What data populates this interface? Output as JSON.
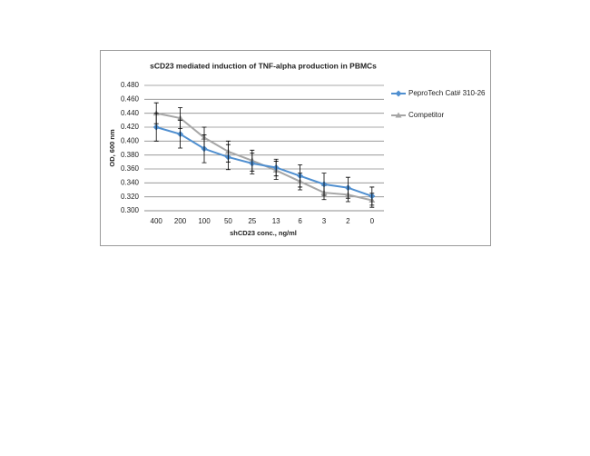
{
  "chart_data": {
    "type": "line",
    "title": "sCD23 mediated induction of TNF-alpha production in PBMCs",
    "x_label": "shCD23 conc., ng/ml",
    "y_label": "OD, 600 nm",
    "categories": [
      "400",
      "200",
      "100",
      "50",
      "25",
      "13",
      "6",
      "3",
      "2",
      "0"
    ],
    "series": [
      {
        "name": "PeproTech Cat# 310-26",
        "color": "#4f8fd0",
        "marker": "diamond",
        "values": [
          0.42,
          0.41,
          0.389,
          0.377,
          0.368,
          0.362,
          0.35,
          0.338,
          0.333,
          0.321
        ],
        "errors": [
          0.02,
          0.02,
          0.02,
          0.018,
          0.015,
          0.012,
          0.016,
          0.016,
          0.015,
          0.013
        ]
      },
      {
        "name": "Competitor",
        "color": "#a6a6a6",
        "marker": "triangle",
        "values": [
          0.44,
          0.433,
          0.405,
          0.385,
          0.372,
          0.358,
          0.342,
          0.326,
          0.323,
          0.315
        ],
        "errors": [
          0.015,
          0.015,
          0.015,
          0.015,
          0.015,
          0.013,
          0.012,
          0.01,
          0.01,
          0.01
        ]
      }
    ],
    "ylim": [
      0.3,
      0.48
    ],
    "yticks": [
      {
        "value": 0.3,
        "label": "0.300"
      },
      {
        "value": 0.32,
        "label": "0.320"
      },
      {
        "value": 0.34,
        "label": "0.340"
      },
      {
        "value": 0.36,
        "label": "0.360"
      },
      {
        "value": 0.38,
        "label": "0.380"
      },
      {
        "value": 0.4,
        "label": "0.400"
      },
      {
        "value": 0.42,
        "label": "0.420"
      },
      {
        "value": 0.44,
        "label": "0.440"
      },
      {
        "value": 0.46,
        "label": "0.460"
      },
      {
        "value": 0.48,
        "label": "0.480"
      }
    ],
    "grid": true,
    "legend": "right"
  }
}
